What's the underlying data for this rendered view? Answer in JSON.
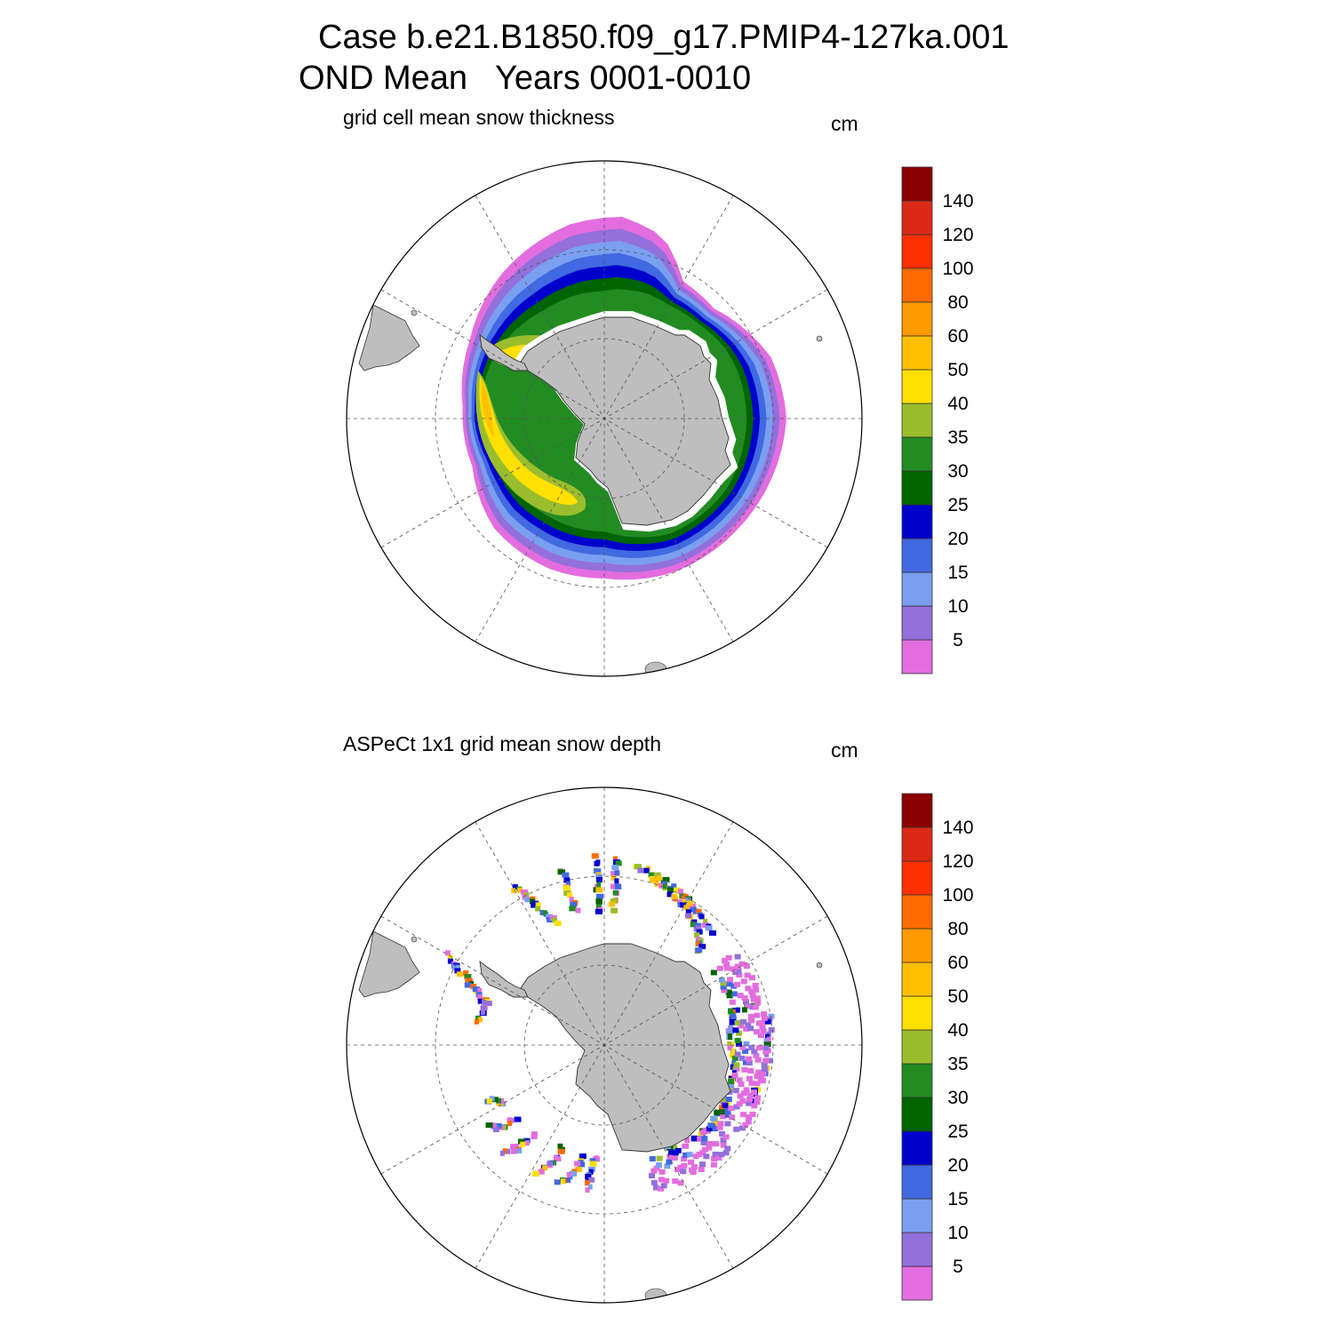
{
  "title": {
    "line1": "Case b.e21.B1850.f09_g17.PMIP4-127ka.001",
    "line2": "OND Mean   Years 0001-0010"
  },
  "panels": [
    {
      "subtitle": "grid cell mean snow thickness",
      "units": "cm",
      "kind": "model"
    },
    {
      "subtitle": "ASPeCt 1x1 grid mean snow depth",
      "units": "cm",
      "kind": "obs"
    }
  ],
  "colorbar": {
    "labels": [
      "5",
      "10",
      "15",
      "20",
      "25",
      "30",
      "35",
      "40",
      "50",
      "60",
      "80",
      "100",
      "120",
      "140"
    ],
    "colors": [
      "#e36ddf",
      "#9370db",
      "#7b9ff0",
      "#4169e1",
      "#0000cd",
      "#006400",
      "#228b22",
      "#9abd2e",
      "#ffe000",
      "#ffc000",
      "#ff9a00",
      "#ff6a00",
      "#ff3000",
      "#dc2a16",
      "#8b0000"
    ]
  },
  "map_style": {
    "land_color": "#bebebe",
    "grid_color": "#555555"
  }
}
